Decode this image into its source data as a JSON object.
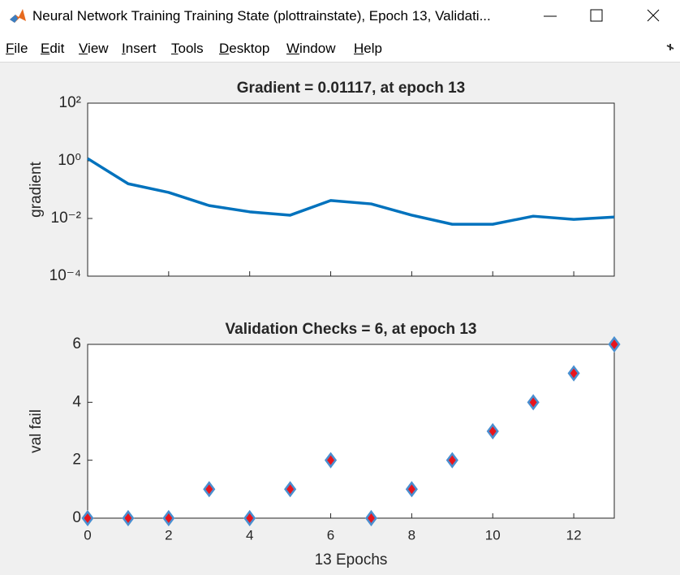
{
  "window": {
    "title": "Neural Network Training Training State (plottrainstate), Epoch 13, Validati..."
  },
  "menu": [
    "File",
    "Edit",
    "View",
    "Insert",
    "Tools",
    "Desktop",
    "Window",
    "Help"
  ],
  "chart_data": [
    {
      "type": "line",
      "title": "Gradient = 0.01117, at epoch 13",
      "ylabel": "gradient",
      "x": [
        0,
        1,
        2,
        3,
        4,
        5,
        6,
        7,
        8,
        9,
        10,
        11,
        12,
        13
      ],
      "values": [
        1.2,
        0.16,
        0.08,
        0.028,
        0.017,
        0.013,
        0.042,
        0.032,
        0.013,
        0.0063,
        0.0063,
        0.012,
        0.0093,
        0.01117
      ],
      "color": "#0072bd",
      "log_scale": true,
      "xlim": [
        0,
        13
      ],
      "xticks": [
        0,
        2,
        4,
        6,
        8,
        10,
        12
      ],
      "ylim": [
        0.0001,
        100
      ],
      "yticks": [
        {
          "value": 0.0001,
          "label": "10⁻⁴"
        },
        {
          "value": 0.01,
          "label": "10⁻²"
        },
        {
          "value": 1,
          "label": "10⁰"
        },
        {
          "value": 100,
          "label": "10²"
        }
      ]
    },
    {
      "type": "scatter",
      "title": "Validation Checks = 6, at epoch 13",
      "ylabel": "val fail",
      "xlabel": "13 Epochs",
      "x": [
        0,
        1,
        2,
        3,
        4,
        5,
        6,
        7,
        8,
        9,
        10,
        11,
        12,
        13
      ],
      "values": [
        0,
        0,
        0,
        1,
        0,
        1,
        2,
        0,
        1,
        2,
        3,
        4,
        5,
        6
      ],
      "color": "#4a8fd0",
      "fill": "#e8141c",
      "xlim": [
        0,
        13
      ],
      "xticks": [
        0,
        2,
        4,
        6,
        8,
        10,
        12
      ],
      "ylim": [
        0,
        6
      ],
      "yticks": [
        0,
        2,
        4,
        6
      ]
    }
  ]
}
